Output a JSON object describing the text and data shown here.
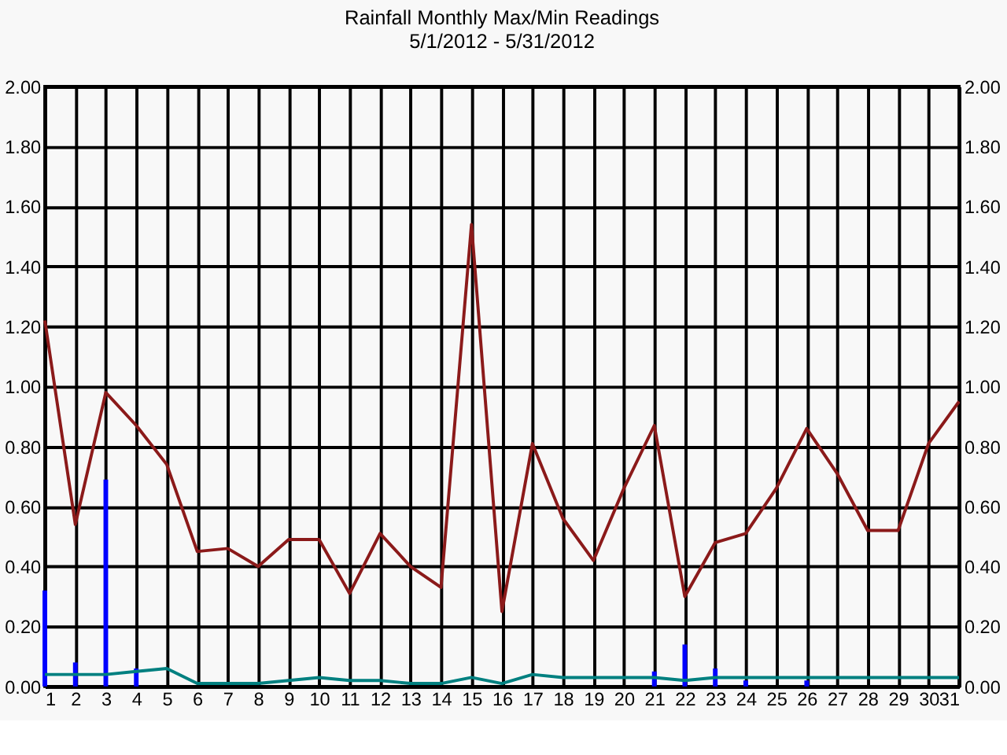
{
  "chart_data": {
    "type": "line",
    "title": "Rainfall Monthly Max/Min Readings",
    "subtitle": "5/1/2012 - 5/31/2012",
    "x": [
      1,
      2,
      3,
      4,
      5,
      6,
      7,
      8,
      9,
      10,
      11,
      12,
      13,
      14,
      15,
      16,
      17,
      18,
      19,
      20,
      21,
      22,
      23,
      24,
      25,
      26,
      27,
      28,
      29,
      30,
      31
    ],
    "series": [
      {
        "type": "bar",
        "color": "#0000ff",
        "values": [
          0.32,
          0.08,
          0.69,
          0.06,
          0,
          0,
          0,
          0,
          0,
          0,
          0,
          0,
          0,
          0,
          0,
          0,
          0,
          0,
          0,
          0,
          0.05,
          0.14,
          0.06,
          0.02,
          0,
          0.02,
          0,
          0,
          0,
          0,
          0
        ]
      },
      {
        "color": "#8b1a1a",
        "values": [
          1.22,
          0.54,
          0.98,
          0.87,
          0.74,
          0.45,
          0.46,
          0.4,
          0.49,
          0.49,
          0.31,
          0.51,
          0.4,
          0.33,
          1.54,
          0.25,
          0.81,
          0.56,
          0.42,
          0.66,
          0.87,
          0.3,
          0.48,
          0.51,
          0.66,
          0.86,
          0.71,
          0.52,
          0.52,
          0.81,
          0.95
        ]
      },
      {
        "color": "#008080",
        "values": [
          0.04,
          0.04,
          0.04,
          0.05,
          0.06,
          0.01,
          0.01,
          0.01,
          0.02,
          0.03,
          0.02,
          0.02,
          0.01,
          0.01,
          0.03,
          0.01,
          0.04,
          0.03,
          0.03,
          0.03,
          0.03,
          0.02,
          0.03,
          0.03,
          0.03,
          0.03,
          0.03,
          0.03,
          0.03,
          0.03,
          0.03
        ]
      }
    ],
    "xlim": [
      1,
      31
    ],
    "xticks": [
      1,
      2,
      3,
      4,
      5,
      6,
      7,
      8,
      9,
      10,
      11,
      12,
      13,
      14,
      15,
      16,
      17,
      18,
      19,
      20,
      21,
      22,
      23,
      24,
      25,
      26,
      27,
      28,
      29,
      30,
      31
    ],
    "ylim": [
      0,
      2
    ],
    "yticks": [
      {
        "value": 0,
        "label": "0.00"
      },
      {
        "value": 0.2,
        "label": "0.20"
      },
      {
        "value": 0.4,
        "label": "0.40"
      },
      {
        "value": 0.6,
        "label": "0.60"
      },
      {
        "value": 0.8,
        "label": "0.80"
      },
      {
        "value": 1,
        "label": "1.00"
      },
      {
        "value": 1.2,
        "label": "1.20"
      },
      {
        "value": 1.4,
        "label": "1.40"
      },
      {
        "value": 1.6,
        "label": "1.60"
      },
      {
        "value": 1.8,
        "label": "1.80"
      },
      {
        "value": 2,
        "label": "2.00"
      }
    ],
    "y2lim": [
      0,
      2
    ],
    "y2ticks": [
      {
        "value": 0,
        "label": "0.00"
      },
      {
        "value": 0.2,
        "label": "0.20"
      },
      {
        "value": 0.4,
        "label": "0.40"
      },
      {
        "value": 0.6,
        "label": "0.60"
      },
      {
        "value": 0.8,
        "label": "0.80"
      },
      {
        "value": 1,
        "label": "1.00"
      },
      {
        "value": 1.2,
        "label": "1.20"
      },
      {
        "value": 1.4,
        "label": "1.40"
      },
      {
        "value": 1.6,
        "label": "1.60"
      },
      {
        "value": 1.8,
        "label": "1.80"
      },
      {
        "value": 2,
        "label": "2.00"
      }
    ],
    "grid": true,
    "legend": false,
    "marker": "none",
    "line_style": "solid"
  }
}
